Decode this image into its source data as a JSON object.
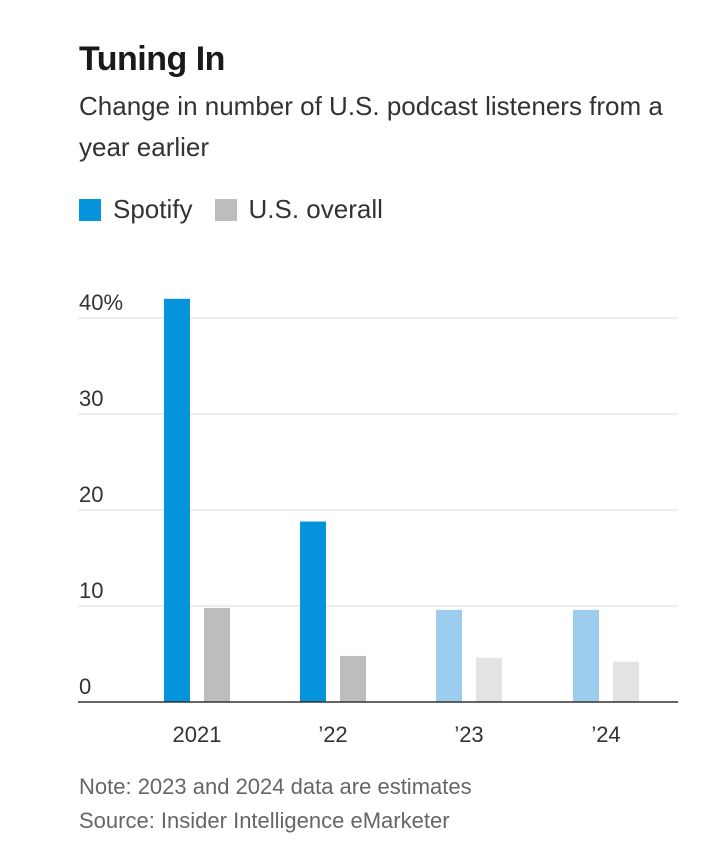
{
  "header": {
    "title": "Tuning In",
    "subtitle": "Change in number of U.S. podcast listeners from a year earlier"
  },
  "legend": [
    {
      "label": "Spotify",
      "color": "#0593db"
    },
    {
      "label": "U.S. overall",
      "color": "#bdbdbd"
    }
  ],
  "footer": {
    "note": "Note: 2023 and 2024 data are estimates",
    "source": "Source: Insider Intelligence eMarketer"
  },
  "chart_data": {
    "type": "bar",
    "categories": [
      "2021",
      "’22",
      "’23",
      "’24"
    ],
    "series": [
      {
        "name": "Spotify",
        "values": [
          42,
          18.8,
          9.6,
          9.6
        ],
        "color": "#0593db",
        "estimate_color": "#9dcdee"
      },
      {
        "name": "U.S. overall",
        "values": [
          9.8,
          4.8,
          4.6,
          4.2
        ],
        "color": "#bdbdbd",
        "estimate_color": "#e3e3e3"
      }
    ],
    "estimated": [
      false,
      false,
      true,
      true
    ],
    "ylim": [
      0,
      40
    ],
    "yticks": [
      0,
      10,
      20,
      30,
      40
    ],
    "ytick_labels": [
      "0",
      "10",
      "20",
      "30",
      "40%"
    ],
    "grid": true,
    "legend_position": "top-left"
  }
}
